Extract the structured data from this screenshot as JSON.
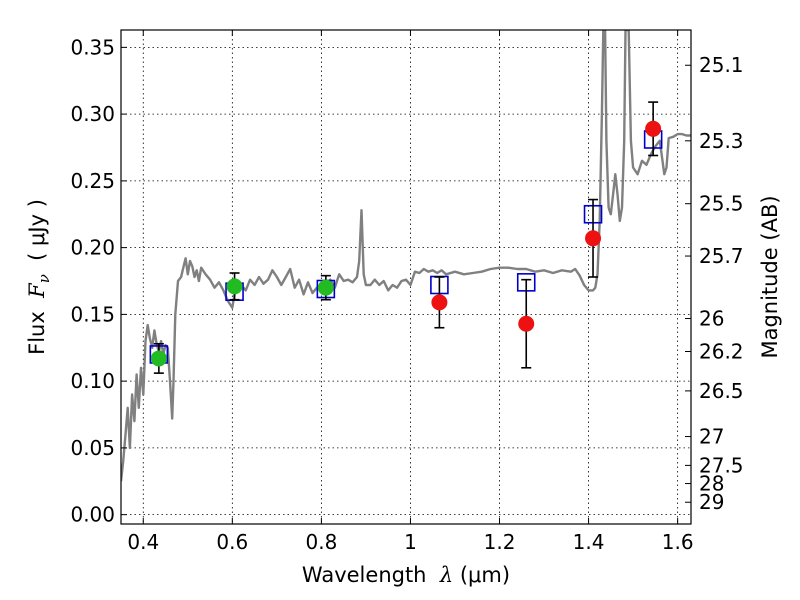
{
  "chart_data": {
    "type": "scatter",
    "xlabel_pre": "Wavelength  ",
    "xlabel_sym": "λ",
    "xlabel_post": " (μm)",
    "ylabel_pre": "Flux  ",
    "ylabel_sym": "F",
    "ylabel_sub": "ν",
    "ylabel_post": "  ( μJy )",
    "y2label": "Magnitude (AB)",
    "xlim": [
      0.35,
      1.63
    ],
    "ylim": [
      -0.007,
      0.363
    ],
    "grid": true,
    "x_ticks": [
      0.4,
      0.6,
      0.8,
      1.0,
      1.2,
      1.4,
      1.6
    ],
    "x_tick_labels": [
      "0.4",
      "0.6",
      "0.8",
      "1",
      "1.2",
      "1.4",
      "1.6"
    ],
    "y_ticks": [
      0.0,
      0.05,
      0.1,
      0.15,
      0.2,
      0.25,
      0.3,
      0.35
    ],
    "y_tick_labels": [
      "0.00",
      "0.05",
      "0.10",
      "0.15",
      "0.20",
      "0.25",
      "0.30",
      "0.35"
    ],
    "y2_ticks": [
      {
        "label": "25.1",
        "flux": 0.3366
      },
      {
        "label": "25.3",
        "flux": 0.28
      },
      {
        "label": "25.5",
        "flux": 0.2329
      },
      {
        "label": "25.7",
        "flux": 0.1937
      },
      {
        "label": "26",
        "flux": 0.1469
      },
      {
        "label": "26.2",
        "flux": 0.1222
      },
      {
        "label": "26.5",
        "flux": 0.0927
      },
      {
        "label": "27",
        "flux": 0.0585
      },
      {
        "label": "27.5",
        "flux": 0.0369
      },
      {
        "label": "28",
        "flux": 0.0233
      },
      {
        "label": "29",
        "flux": 0.0093
      }
    ],
    "series": [
      {
        "kind": "line",
        "color": "#808080",
        "points": [
          [
            0.35,
            0.025
          ],
          [
            0.355,
            0.04
          ],
          [
            0.36,
            0.06
          ],
          [
            0.365,
            0.08
          ],
          [
            0.37,
            0.05
          ],
          [
            0.375,
            0.09
          ],
          [
            0.38,
            0.07
          ],
          [
            0.385,
            0.105
          ],
          [
            0.39,
            0.08
          ],
          [
            0.395,
            0.11
          ],
          [
            0.4,
            0.09
          ],
          [
            0.405,
            0.13
          ],
          [
            0.41,
            0.142
          ],
          [
            0.415,
            0.132
          ],
          [
            0.42,
            0.125
          ],
          [
            0.425,
            0.138
          ],
          [
            0.43,
            0.128
          ],
          [
            0.435,
            0.122
          ],
          [
            0.44,
            0.13
          ],
          [
            0.445,
            0.12
          ],
          [
            0.45,
            0.127
          ],
          [
            0.455,
            0.125
          ],
          [
            0.46,
            0.1
          ],
          [
            0.465,
            0.072
          ],
          [
            0.468,
            0.1
          ],
          [
            0.472,
            0.15
          ],
          [
            0.478,
            0.175
          ],
          [
            0.485,
            0.178
          ],
          [
            0.49,
            0.185
          ],
          [
            0.495,
            0.192
          ],
          [
            0.5,
            0.18
          ],
          [
            0.505,
            0.19
          ],
          [
            0.51,
            0.186
          ],
          [
            0.515,
            0.178
          ],
          [
            0.52,
            0.183
          ],
          [
            0.525,
            0.175
          ],
          [
            0.53,
            0.185
          ],
          [
            0.54,
            0.18
          ],
          [
            0.55,
            0.176
          ],
          [
            0.56,
            0.17
          ],
          [
            0.57,
            0.174
          ],
          [
            0.58,
            0.168
          ],
          [
            0.59,
            0.16
          ],
          [
            0.6,
            0.155
          ],
          [
            0.61,
            0.175
          ],
          [
            0.62,
            0.172
          ],
          [
            0.63,
            0.168
          ],
          [
            0.64,
            0.176
          ],
          [
            0.65,
            0.172
          ],
          [
            0.66,
            0.178
          ],
          [
            0.67,
            0.173
          ],
          [
            0.68,
            0.176
          ],
          [
            0.69,
            0.183
          ],
          [
            0.7,
            0.178
          ],
          [
            0.71,
            0.172
          ],
          [
            0.72,
            0.178
          ],
          [
            0.73,
            0.184
          ],
          [
            0.74,
            0.17
          ],
          [
            0.75,
            0.176
          ],
          [
            0.76,
            0.165
          ],
          [
            0.77,
            0.174
          ],
          [
            0.78,
            0.166
          ],
          [
            0.79,
            0.17
          ],
          [
            0.8,
            0.172
          ],
          [
            0.81,
            0.172
          ],
          [
            0.82,
            0.176
          ],
          [
            0.83,
            0.17
          ],
          [
            0.84,
            0.18
          ],
          [
            0.85,
            0.175
          ],
          [
            0.86,
            0.176
          ],
          [
            0.87,
            0.174
          ],
          [
            0.88,
            0.178
          ],
          [
            0.885,
            0.19
          ],
          [
            0.89,
            0.228
          ],
          [
            0.895,
            0.18
          ],
          [
            0.9,
            0.172
          ],
          [
            0.91,
            0.172
          ],
          [
            0.92,
            0.176
          ],
          [
            0.93,
            0.172
          ],
          [
            0.94,
            0.175
          ],
          [
            0.95,
            0.168
          ],
          [
            0.96,
            0.172
          ],
          [
            0.97,
            0.17
          ],
          [
            0.98,
            0.175
          ],
          [
            0.99,
            0.176
          ],
          [
            1.0,
            0.172
          ],
          [
            1.01,
            0.182
          ],
          [
            1.02,
            0.181
          ],
          [
            1.03,
            0.184
          ],
          [
            1.04,
            0.182
          ],
          [
            1.05,
            0.183
          ],
          [
            1.06,
            0.181
          ],
          [
            1.07,
            0.183
          ],
          [
            1.08,
            0.18
          ],
          [
            1.1,
            0.182
          ],
          [
            1.12,
            0.18
          ],
          [
            1.14,
            0.181
          ],
          [
            1.16,
            0.182
          ],
          [
            1.18,
            0.184
          ],
          [
            1.2,
            0.185
          ],
          [
            1.22,
            0.185
          ],
          [
            1.24,
            0.184
          ],
          [
            1.26,
            0.184
          ],
          [
            1.28,
            0.182
          ],
          [
            1.3,
            0.183
          ],
          [
            1.32,
            0.181
          ],
          [
            1.34,
            0.183
          ],
          [
            1.36,
            0.182
          ],
          [
            1.37,
            0.184
          ],
          [
            1.38,
            0.179
          ],
          [
            1.39,
            0.172
          ],
          [
            1.4,
            0.168
          ],
          [
            1.41,
            0.168
          ],
          [
            1.415,
            0.17
          ],
          [
            1.42,
            0.18
          ],
          [
            1.425,
            0.22
          ],
          [
            1.43,
            0.3
          ],
          [
            1.433,
            0.363
          ],
          [
            1.437,
            0.363
          ],
          [
            1.44,
            0.28
          ],
          [
            1.445,
            0.23
          ],
          [
            1.45,
            0.225
          ],
          [
            1.455,
            0.24
          ],
          [
            1.46,
            0.255
          ],
          [
            1.465,
            0.24
          ],
          [
            1.47,
            0.22
          ],
          [
            1.475,
            0.23
          ],
          [
            1.48,
            0.28
          ],
          [
            1.483,
            0.363
          ],
          [
            1.49,
            0.363
          ],
          [
            1.495,
            0.28
          ],
          [
            1.5,
            0.26
          ],
          [
            1.51,
            0.255
          ],
          [
            1.52,
            0.265
          ],
          [
            1.53,
            0.262
          ],
          [
            1.54,
            0.27
          ],
          [
            1.55,
            0.276
          ],
          [
            1.56,
            0.28
          ],
          [
            1.57,
            0.255
          ],
          [
            1.575,
            0.26
          ],
          [
            1.58,
            0.282
          ],
          [
            1.59,
            0.283
          ],
          [
            1.6,
            0.285
          ],
          [
            1.61,
            0.285
          ],
          [
            1.62,
            0.284
          ],
          [
            1.63,
            0.284
          ]
        ]
      },
      {
        "kind": "model_squares",
        "color": "#0000cc",
        "points": [
          [
            0.435,
            0.12
          ],
          [
            0.605,
            0.167
          ],
          [
            0.81,
            0.169
          ],
          [
            1.065,
            0.172
          ],
          [
            1.26,
            0.174
          ],
          [
            1.41,
            0.225
          ],
          [
            1.545,
            0.281
          ]
        ]
      },
      {
        "kind": "observed_points",
        "error_color": "#000000",
        "points": [
          {
            "x": 0.435,
            "y": 0.117,
            "err": 0.011,
            "color": "#22bb22"
          },
          {
            "x": 0.605,
            "y": 0.171,
            "err": 0.01,
            "color": "#22bb22"
          },
          {
            "x": 0.81,
            "y": 0.17,
            "err": 0.009,
            "color": "#22bb22"
          },
          {
            "x": 1.065,
            "y": 0.159,
            "err": 0.019,
            "color": "#ee1111"
          },
          {
            "x": 1.26,
            "y": 0.143,
            "err": 0.033,
            "color": "#ee1111"
          },
          {
            "x": 1.41,
            "y": 0.207,
            "err": 0.029,
            "color": "#ee1111"
          },
          {
            "x": 1.545,
            "y": 0.289,
            "err": 0.02,
            "color": "#ee1111"
          }
        ]
      }
    ]
  }
}
